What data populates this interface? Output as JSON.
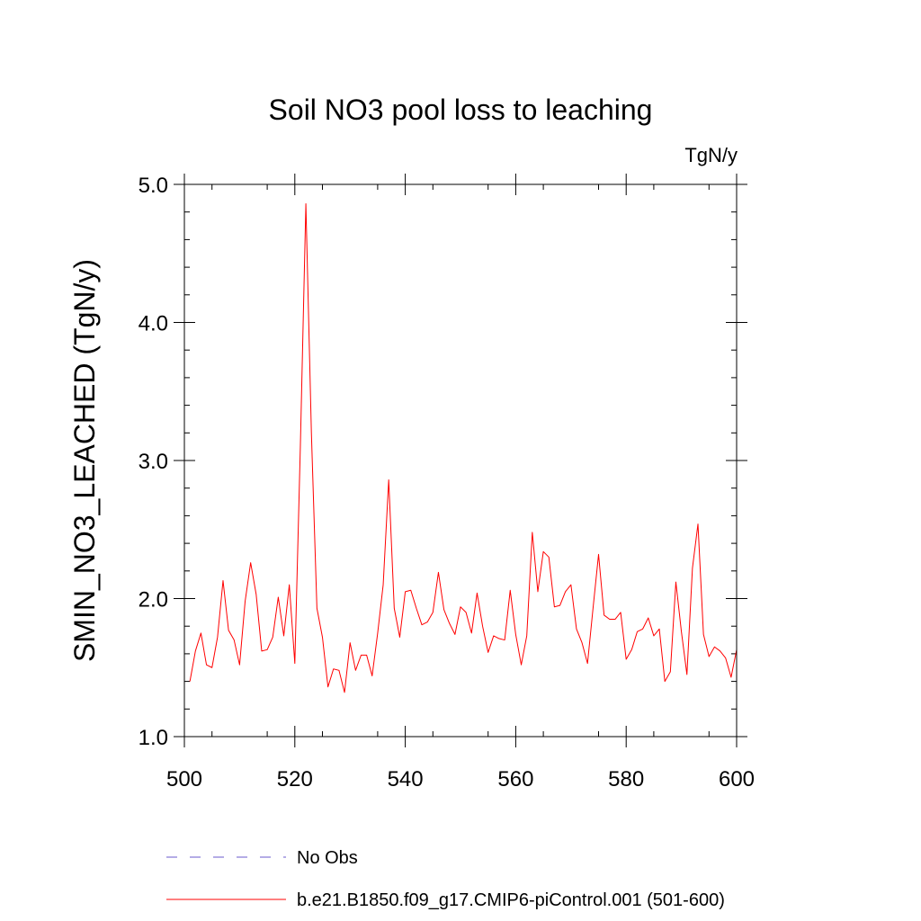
{
  "chart_data": {
    "type": "line",
    "title": "Soil NO3 pool loss to leaching",
    "units": "TgN/y",
    "xlabel": "",
    "ylabel": "SMIN_NO3_LEACHED  (TgN/y)",
    "xlim": [
      500,
      600
    ],
    "ylim": [
      1.0,
      5.0
    ],
    "xticks": [
      500,
      520,
      540,
      560,
      580,
      600
    ],
    "xtick_labels": [
      "500",
      "520",
      "540",
      "560",
      "580",
      "600"
    ],
    "yticks": [
      1.0,
      2.0,
      3.0,
      4.0,
      5.0
    ],
    "ytick_labels": [
      "1.0",
      "2.0",
      "3.0",
      "4.0",
      "5.0"
    ],
    "grid": false,
    "legend_position": "bottom",
    "legend": [
      {
        "label": "No Obs",
        "color": "#6a5acd",
        "style": "dashed"
      },
      {
        "label": "b.e21.B1850.f09_g17.CMIP6-piControl.001 (501-600)",
        "color": "#ff0000",
        "style": "solid"
      }
    ],
    "series": [
      {
        "name": "b.e21.B1850.f09_g17.CMIP6-piControl.001 (501-600)",
        "color": "#ff0000",
        "x": [
          501,
          502,
          503,
          504,
          505,
          506,
          507,
          508,
          509,
          510,
          511,
          512,
          513,
          514,
          515,
          516,
          517,
          518,
          519,
          520,
          521,
          522,
          523,
          524,
          525,
          526,
          527,
          528,
          529,
          530,
          531,
          532,
          533,
          534,
          535,
          536,
          537,
          538,
          539,
          540,
          541,
          542,
          543,
          544,
          545,
          546,
          547,
          548,
          549,
          550,
          551,
          552,
          553,
          554,
          555,
          556,
          557,
          558,
          559,
          560,
          561,
          562,
          563,
          564,
          565,
          566,
          567,
          568,
          569,
          570,
          571,
          572,
          573,
          574,
          575,
          576,
          577,
          578,
          579,
          580,
          581,
          582,
          583,
          584,
          585,
          586,
          587,
          588,
          589,
          590,
          591,
          592,
          593,
          594,
          595,
          596,
          597,
          598,
          599,
          600
        ],
        "values": [
          1.4,
          1.62,
          1.75,
          1.52,
          1.5,
          1.72,
          2.13,
          1.77,
          1.7,
          1.52,
          1.98,
          2.26,
          2.03,
          1.62,
          1.63,
          1.72,
          2.01,
          1.73,
          2.1,
          1.53,
          3.1,
          4.86,
          3.2,
          1.93,
          1.72,
          1.36,
          1.49,
          1.48,
          1.32,
          1.68,
          1.48,
          1.59,
          1.59,
          1.44,
          1.75,
          2.1,
          2.86,
          1.93,
          1.72,
          2.05,
          2.06,
          1.93,
          1.81,
          1.83,
          1.9,
          2.19,
          1.92,
          1.82,
          1.74,
          1.94,
          1.9,
          1.75,
          2.04,
          1.8,
          1.61,
          1.73,
          1.71,
          1.7,
          2.06,
          1.74,
          1.52,
          1.73,
          2.48,
          2.05,
          2.34,
          2.3,
          1.94,
          1.95,
          2.05,
          2.1,
          1.78,
          1.68,
          1.53,
          1.93,
          2.32,
          1.88,
          1.85,
          1.85,
          1.9,
          1.56,
          1.63,
          1.76,
          1.78,
          1.86,
          1.73,
          1.78,
          1.4,
          1.47,
          2.12,
          1.76,
          1.45,
          2.22,
          2.54,
          1.74,
          1.58,
          1.65,
          1.62,
          1.57,
          1.43,
          1.63
        ]
      }
    ]
  }
}
